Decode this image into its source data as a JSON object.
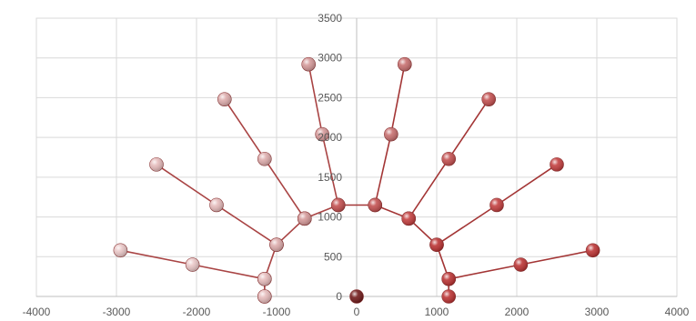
{
  "chart_data": {
    "type": "scatter",
    "title": "",
    "xlabel": "",
    "ylabel": "",
    "xlim": [
      -4000,
      4000
    ],
    "ylim": [
      0,
      3500
    ],
    "grid": true,
    "legend": "none",
    "xticks": [
      -4000,
      -3000,
      -2000,
      -1000,
      0,
      1000,
      2000,
      3000,
      4000
    ],
    "yticks": [
      0,
      500,
      1000,
      1500,
      2000,
      2500,
      3000,
      3500
    ],
    "base_point": {
      "x": 0,
      "y": 0,
      "color": "#6a1010"
    },
    "series": [
      {
        "color": "#e8c4c4",
        "line_color": "#a94444",
        "points": [
          {
            "x": -1150,
            "y": 0
          },
          {
            "x": -1150,
            "y": 220
          },
          {
            "x": -2050,
            "y": 400
          },
          {
            "x": -2950,
            "y": 580
          }
        ]
      },
      {
        "color": "#e4b8b8",
        "line_color": "#a94444",
        "points": [
          {
            "x": -1150,
            "y": 0
          },
          {
            "x": -1150,
            "y": 220
          },
          {
            "x": -1000,
            "y": 650
          },
          {
            "x": -1750,
            "y": 1150
          },
          {
            "x": -2500,
            "y": 1660
          }
        ]
      },
      {
        "color": "#dba8a8",
        "line_color": "#a94444",
        "points": [
          {
            "x": -1000,
            "y": 650
          },
          {
            "x": -650,
            "y": 980
          },
          {
            "x": -1150,
            "y": 1730
          },
          {
            "x": -1650,
            "y": 2480
          }
        ]
      },
      {
        "color": "#d29494",
        "line_color": "#a94444",
        "points": [
          {
            "x": -650,
            "y": 980
          },
          {
            "x": -230,
            "y": 1150
          },
          {
            "x": -430,
            "y": 2040
          },
          {
            "x": -600,
            "y": 2920
          }
        ]
      },
      {
        "color": "#c46868",
        "line_color": "#a33535",
        "points": [
          {
            "x": 230,
            "y": 1150
          },
          {
            "x": 430,
            "y": 2040
          },
          {
            "x": 600,
            "y": 2920
          }
        ]
      },
      {
        "color": "#c04848",
        "line_color": "#a33535",
        "points": [
          {
            "x": -230,
            "y": 1150
          },
          {
            "x": 230,
            "y": 1150
          },
          {
            "x": 650,
            "y": 980
          },
          {
            "x": 1150,
            "y": 1730
          },
          {
            "x": 1650,
            "y": 2480
          }
        ]
      },
      {
        "color": "#c03636",
        "line_color": "#a33535",
        "points": [
          {
            "x": 650,
            "y": 980
          },
          {
            "x": 1000,
            "y": 650
          },
          {
            "x": 1750,
            "y": 1150
          },
          {
            "x": 2500,
            "y": 1660
          }
        ]
      },
      {
        "color": "#b82a2a",
        "line_color": "#a33535",
        "points": [
          {
            "x": 1150,
            "y": 0
          },
          {
            "x": 1150,
            "y": 220
          },
          {
            "x": 2050,
            "y": 400
          },
          {
            "x": 2950,
            "y": 580
          }
        ]
      },
      {
        "color": "#b82a2a",
        "line_color": "#a33535",
        "points": [
          {
            "x": 1000,
            "y": 650
          },
          {
            "x": 1150,
            "y": 220
          }
        ]
      }
    ]
  }
}
